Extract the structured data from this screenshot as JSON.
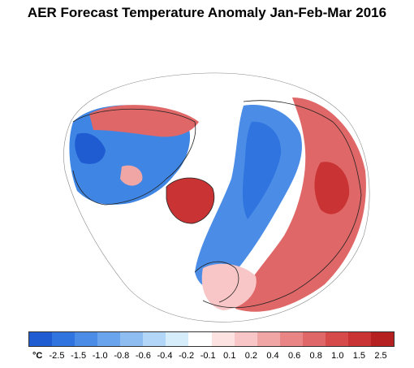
{
  "title": "AER Forecast Temperature Anomaly Jan-Feb-Mar 2016",
  "legend": {
    "unit": "°C",
    "colors": [
      "#1f5bd1",
      "#2f74df",
      "#4a8ce6",
      "#6aa4ec",
      "#8ebdf2",
      "#b2d6f7",
      "#d6edfb",
      "#ffffff",
      "#fde2e2",
      "#f8c6c6",
      "#f1a6a6",
      "#e98585",
      "#e06767",
      "#d64a4a",
      "#c93333",
      "#b52020"
    ],
    "labels": [
      "-2.5",
      "-1.5",
      "-1.0",
      "-0.8",
      "-0.6",
      "-0.4",
      "-0.2",
      "-0.1",
      "0.1",
      "0.2",
      "0.4",
      "0.6",
      "0.8",
      "1.0",
      "1.5",
      "2.5"
    ]
  },
  "map_colors": {
    "ocean": "#ffffff",
    "border": "#222222"
  }
}
